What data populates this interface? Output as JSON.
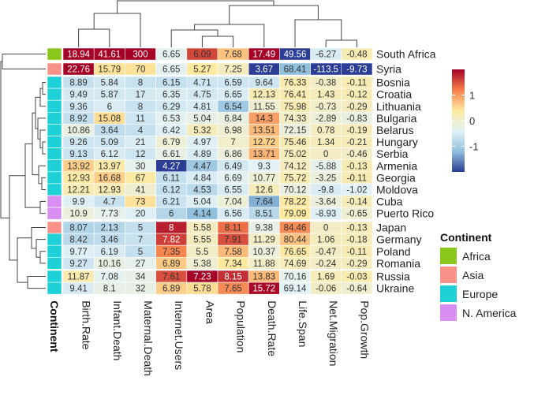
{
  "chart_data": {
    "type": "heatmap",
    "columns": [
      "Birth.Rate",
      "Infant.Death",
      "Maternal.Death",
      "Internet.Users",
      "Area",
      "Population",
      "Death.Rate",
      "Life.Span",
      "Net.Migration",
      "Pop.Growth"
    ],
    "row_groups": [
      {
        "rows": [
          {
            "label": "South Africa",
            "continent": "Africa",
            "values": [
              "18.94",
              "41.61",
              "300",
              "6.65",
              "6.09",
              "7.68",
              "17.49",
              "49.56",
              "-6.27",
              "-0.48"
            ]
          }
        ]
      },
      {
        "rows": [
          {
            "label": "Syria",
            "continent": "Asia",
            "values": [
              "22.76",
              "15.79",
              "70",
              "6.65",
              "5.27",
              "7.25",
              "3.67",
              "68.41",
              "-113.5",
              "-9.73"
            ]
          }
        ]
      },
      {
        "rows": [
          {
            "label": "Bosnia",
            "continent": "Europe",
            "values": [
              "8.89",
              "5.84",
              "8",
              "6.15",
              "4.71",
              "6.59",
              "9.64",
              "76.33",
              "-0.38",
              "-0.11"
            ]
          },
          {
            "label": "Croatia",
            "continent": "Europe",
            "values": [
              "9.49",
              "5.87",
              "17",
              "6.35",
              "4.75",
              "6.65",
              "12.13",
              "76.41",
              "1.43",
              "-0.12"
            ]
          },
          {
            "label": "Lithuania",
            "continent": "Europe",
            "values": [
              "9.36",
              "6",
              "8",
              "6.29",
              "4.81",
              "6.54",
              "11.55",
              "75.98",
              "-0.73",
              "-0.29"
            ]
          },
          {
            "label": "Bulgaria",
            "continent": "Europe",
            "values": [
              "8.92",
              "15.08",
              "11",
              "6.53",
              "5.04",
              "6.84",
              "14.3",
              "74.33",
              "-2.89",
              "-0.83"
            ]
          },
          {
            "label": "Belarus",
            "continent": "Europe",
            "values": [
              "10.86",
              "3.64",
              "4",
              "6.42",
              "5.32",
              "6.98",
              "13.51",
              "72.15",
              "0.78",
              "-0.19"
            ]
          },
          {
            "label": "Hungary",
            "continent": "Europe",
            "values": [
              "9.26",
              "5.09",
              "21",
              "6.79",
              "4.97",
              "7",
              "12.72",
              "75.46",
              "1.34",
              "-0.21"
            ]
          },
          {
            "label": "Serbia",
            "continent": "Europe",
            "values": [
              "9.13",
              "6.12",
              "12",
              "6.61",
              "4.89",
              "6.86",
              "13.71",
              "75.02",
              "0",
              "-0.46"
            ]
          },
          {
            "label": "Armenia",
            "continent": "Europe",
            "values": [
              "13.92",
              "13.97",
              "30",
              "4.27",
              "4.47",
              "6.49",
              "9.3",
              "74.12",
              "-5.88",
              "-0.13"
            ]
          },
          {
            "label": "Georgia",
            "continent": "Europe",
            "values": [
              "12.93",
              "16.68",
              "67",
              "6.11",
              "4.84",
              "6.69",
              "10.77",
              "75.72",
              "-3.25",
              "-0.11"
            ]
          },
          {
            "label": "Moldova",
            "continent": "Europe",
            "values": [
              "12.21",
              "12.93",
              "41",
              "6.12",
              "4.53",
              "6.55",
              "12.6",
              "70.12",
              "-9.8",
              "-1.02"
            ]
          },
          {
            "label": "Cuba",
            "continent": "N. America",
            "values": [
              "9.9",
              "4.7",
              "73",
              "6.21",
              "5.04",
              "7.04",
              "7.64",
              "78.22",
              "-3.64",
              "-0.14"
            ]
          },
          {
            "label": "Puerto Rico",
            "continent": "N. America",
            "values": [
              "10.9",
              "7.73",
              "20",
              "6",
              "4.14",
              "6.56",
              "8.51",
              "79.09",
              "-8.93",
              "-0.65"
            ]
          }
        ]
      },
      {
        "rows": [
          {
            "label": "Japan",
            "continent": "Asia",
            "values": [
              "8.07",
              "2.13",
              "5",
              "8",
              "5.58",
              "8.11",
              "9.38",
              "84.46",
              "0",
              "-0.13"
            ]
          },
          {
            "label": "Germany",
            "continent": "Europe",
            "values": [
              "8.42",
              "3.46",
              "7",
              "7.82",
              "5.55",
              "7.91",
              "11.29",
              "80.44",
              "1.06",
              "-0.18"
            ]
          },
          {
            "label": "Poland",
            "continent": "Europe",
            "values": [
              "9.77",
              "6.19",
              "5",
              "7.35",
              "5.5",
              "7.58",
              "10.37",
              "76.65",
              "-0.47",
              "-0.11"
            ]
          },
          {
            "label": "Romania",
            "continent": "Europe",
            "values": [
              "9.27",
              "10.16",
              "27",
              "6.89",
              "5.38",
              "7.34",
              "11.88",
              "74.69",
              "-0.24",
              "-0.29"
            ]
          }
        ]
      },
      {
        "rows": [
          {
            "label": "Russia",
            "continent": "Europe",
            "values": [
              "11.87",
              "7.08",
              "34",
              "7.61",
              "7.23",
              "8.15",
              "13.83",
              "70.16",
              "1.69",
              "-0.03"
            ]
          },
          {
            "label": "Ukraine",
            "continent": "Europe",
            "values": [
              "9.41",
              "8.1",
              "32",
              "6.89",
              "5.78",
              "7.65",
              "15.72",
              "69.14",
              "-0.06",
              "-0.64"
            ]
          }
        ]
      }
    ],
    "z_scores": [
      [
        2.3,
        2.6,
        2.8,
        -0.35,
        1.55,
        0.7,
        2.4,
        -2.4,
        -0.5,
        0.2
      ],
      [
        2.6,
        0.45,
        0.45,
        -0.35,
        0.4,
        0.1,
        -2.2,
        -1.2,
        -2.4,
        -2.4
      ],
      [
        -0.7,
        -0.55,
        -0.65,
        -0.7,
        -0.6,
        -0.6,
        -0.6,
        0.25,
        0.05,
        0.2
      ],
      [
        -0.55,
        -0.55,
        -0.55,
        -0.5,
        -0.55,
        -0.5,
        0.2,
        0.25,
        0.15,
        0.2
      ],
      [
        -0.6,
        -0.5,
        -0.65,
        -0.55,
        -0.5,
        -1.05,
        -0.05,
        0.2,
        0.0,
        0.1
      ],
      [
        -0.7,
        0.5,
        -0.6,
        -0.35,
        -0.25,
        -0.2,
        0.95,
        0.05,
        -0.1,
        -0.2
      ],
      [
        -0.2,
        -0.75,
        -0.7,
        -0.45,
        0.15,
        -0.05,
        0.75,
        -0.15,
        0.1,
        0.15
      ],
      [
        -0.6,
        -0.6,
        -0.5,
        -0.1,
        -0.45,
        0.0,
        0.6,
        0.2,
        0.15,
        0.15
      ],
      [
        -0.65,
        -0.5,
        -0.6,
        -0.25,
        -0.5,
        -0.15,
        0.8,
        0.15,
        0.05,
        0.05
      ],
      [
        0.6,
        0.3,
        -0.3,
        -2.6,
        -1.05,
        -0.55,
        -0.4,
        0.1,
        -0.3,
        0.2
      ],
      [
        0.35,
        0.6,
        0.35,
        -0.7,
        -0.5,
        -0.35,
        -0.1,
        0.2,
        -0.15,
        0.2
      ],
      [
        0.2,
        0.2,
        -0.05,
        -0.7,
        -0.8,
        -0.5,
        0.15,
        -0.2,
        -0.5,
        -0.4
      ],
      [
        -0.45,
        -0.65,
        0.45,
        -0.65,
        -0.45,
        -0.1,
        -1.3,
        0.35,
        -0.15,
        0.15
      ],
      [
        -0.15,
        -0.3,
        -0.45,
        -0.85,
        -1.2,
        -0.5,
        -0.8,
        0.4,
        -0.45,
        -0.05
      ],
      [
        -0.9,
        -0.85,
        -0.7,
        1.8,
        0.1,
        1.3,
        -0.25,
        1.1,
        0.05,
        0.15
      ],
      [
        -0.8,
        -0.75,
        -0.65,
        1.6,
        0.1,
        1.5,
        0.05,
        0.7,
        0.1,
        0.15
      ],
      [
        -0.45,
        -0.5,
        -0.7,
        1.15,
        0.05,
        0.75,
        -0.15,
        0.35,
        0.05,
        0.2
      ],
      [
        -0.6,
        -0.2,
        -0.3,
        0.65,
        -0.05,
        0.4,
        0.05,
        0.15,
        0.05,
        0.1
      ],
      [
        0.25,
        -0.35,
        -0.25,
        1.5,
        2.3,
        1.7,
        0.75,
        -0.3,
        0.15,
        0.25
      ],
      [
        -0.5,
        -0.25,
        -0.25,
        0.6,
        0.5,
        1.1,
        1.95,
        -0.4,
        0.05,
        -0.05
      ]
    ],
    "color_scale": {
      "min": -2,
      "max": 2,
      "stops": [
        "#2b3d94",
        "#8fc0dd",
        "#e3f2f7",
        "#fee99e",
        "#f67e4b",
        "#a50026"
      ],
      "ticks": [
        "1",
        "0",
        "-1"
      ]
    },
    "continent_annotation": {
      "title": "Continent",
      "row_axis_label": "Continent",
      "categories": [
        {
          "name": "Africa",
          "color": "#8bc71b"
        },
        {
          "name": "Asia",
          "color": "#f99189"
        },
        {
          "name": "Europe",
          "color": "#1ed0d7"
        },
        {
          "name": "N. America",
          "color": "#d98ef2"
        }
      ]
    }
  }
}
